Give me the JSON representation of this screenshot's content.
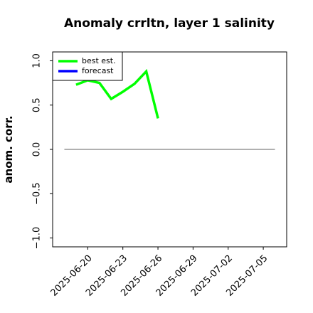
{
  "chart_data": {
    "type": "line",
    "title": "Anomaly crrltn, layer 1 salinity",
    "y_label": "anom. corr.",
    "x": [
      "2025-06-19",
      "2025-06-20",
      "2025-06-21",
      "2025-06-22",
      "2025-06-23",
      "2025-06-24",
      "2025-06-25",
      "2025-06-26"
    ],
    "series": [
      {
        "name": "best est.",
        "color": "#00ff00",
        "values": [
          0.73,
          0.78,
          0.75,
          0.57,
          0.65,
          0.74,
          0.88,
          0.35
        ]
      },
      {
        "name": "forecast",
        "color": "#0000ff",
        "values": [
          null,
          null,
          null,
          null,
          null,
          null,
          null,
          null
        ]
      }
    ],
    "reference_line": {
      "x": [
        "2025-06-18",
        "2025-07-06"
      ],
      "y": 0,
      "color": "#808080"
    },
    "xlim": [
      "2025-06-17",
      "2025-07-07"
    ],
    "xticks": [
      "2025-06-20",
      "2025-06-23",
      "2025-06-26",
      "2025-06-29",
      "2025-07-02",
      "2025-07-05"
    ],
    "highlight_date": "2025-06-26",
    "highlight_color": "#228b22",
    "ylim": [
      -1.1,
      1.1
    ],
    "yticks": [
      {
        "value": -1,
        "label": "−1.0"
      },
      {
        "value": -0.5,
        "label": "−0.5"
      },
      {
        "value": 0,
        "label": "0.0"
      },
      {
        "value": 0.5,
        "label": "0.5"
      },
      {
        "value": 1,
        "label": "1.0"
      }
    ],
    "legend": "upper left"
  }
}
